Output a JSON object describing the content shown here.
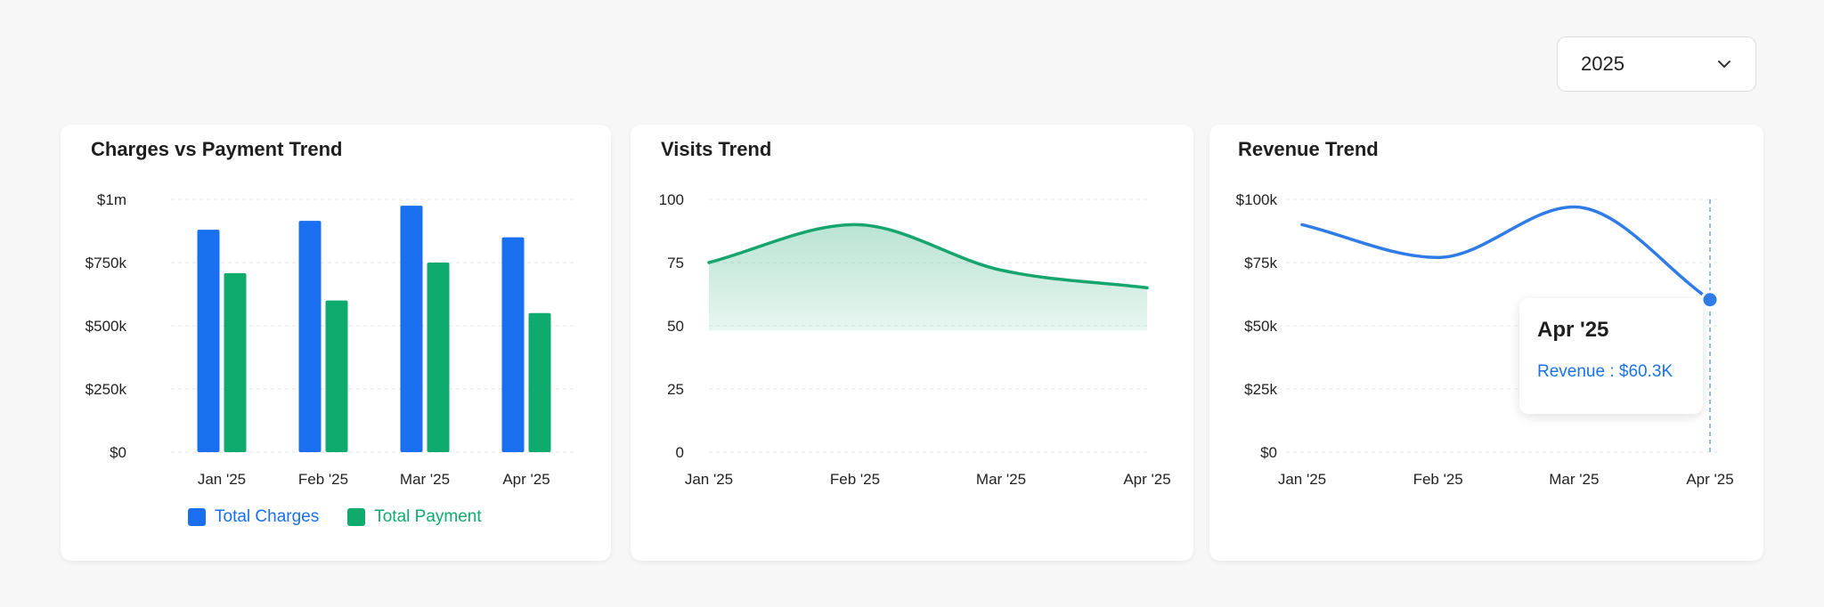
{
  "year_select": {
    "value": "2025",
    "icon": "chevron-down-icon"
  },
  "charts": {
    "charges": {
      "title": "Charges vs Payment Trend"
    },
    "visits": {
      "title": "Visits Trend"
    },
    "revenue": {
      "title": "Revenue Trend"
    }
  },
  "legend": {
    "charges_label": "Total Charges",
    "payment_label": "Total Payment"
  },
  "tooltip": {
    "title": "Apr '25",
    "series_label": "Revenue",
    "value_text": "$60.3K"
  },
  "colors": {
    "blue": "#1a6ff0",
    "green": "#0fab6e",
    "revenue_blue": "#2f7be8",
    "area_green": "#17a56e"
  },
  "chart_data": [
    {
      "type": "bar",
      "title": "Charges vs Payment Trend",
      "categories": [
        "Jan '25",
        "Feb '25",
        "Mar '25",
        "Apr '25"
      ],
      "series": [
        {
          "name": "Total Charges",
          "values": [
            880000,
            915000,
            975000,
            850000
          ]
        },
        {
          "name": "Total Payment",
          "values": [
            708000,
            600000,
            750000,
            550000
          ]
        }
      ],
      "ylim": [
        0,
        1000000
      ],
      "yticks": [
        0,
        250000,
        500000,
        750000,
        1000000
      ],
      "ytick_labels": [
        "$0",
        "$250k",
        "$500k",
        "$750k",
        "$1m"
      ],
      "grid": true,
      "legend_position": "bottom"
    },
    {
      "type": "area",
      "title": "Visits Trend",
      "categories": [
        "Jan '25",
        "Feb '25",
        "Mar '25",
        "Apr '25"
      ],
      "values": [
        75,
        90,
        72,
        65
      ],
      "ylim": [
        0,
        100
      ],
      "yticks": [
        0,
        25,
        50,
        75,
        100
      ],
      "ytick_labels": [
        "0",
        "25",
        "50",
        "75",
        "100"
      ],
      "grid": true
    },
    {
      "type": "line",
      "title": "Revenue Trend",
      "categories": [
        "Jan '25",
        "Feb '25",
        "Mar '25",
        "Apr '25"
      ],
      "values": [
        90000,
        77000,
        97000,
        60300
      ],
      "ylim": [
        0,
        100000
      ],
      "yticks": [
        0,
        25000,
        50000,
        75000,
        100000
      ],
      "ytick_labels": [
        "$0",
        "$25k",
        "$50k",
        "$75k",
        "$100k"
      ],
      "grid": true,
      "highlighted": "Apr '25"
    }
  ]
}
